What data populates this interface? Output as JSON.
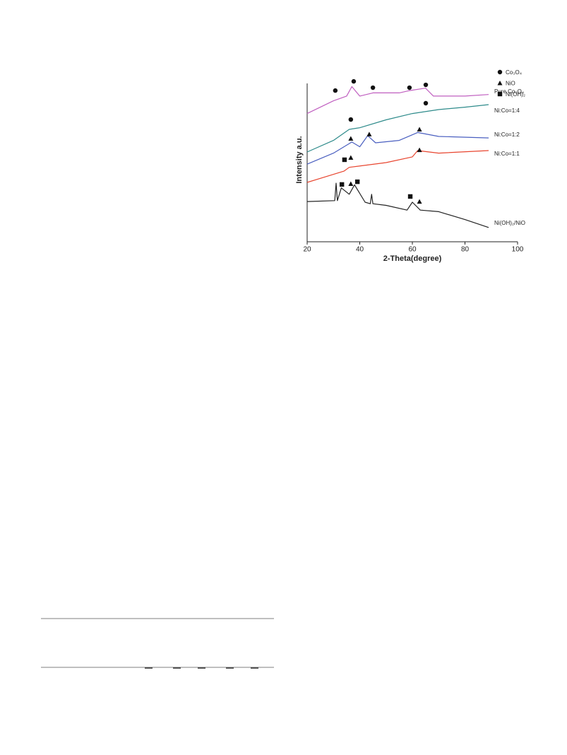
{
  "chart_data": {
    "type": "line",
    "xlabel": "2-Theta(degree)",
    "ylabel": "Intensity a.u.",
    "xlim": [
      20,
      100
    ],
    "xticks": [
      20,
      40,
      60,
      80,
      100
    ],
    "ylim": [
      0,
      100
    ],
    "series": [
      {
        "name": "Pure Co₃O₄",
        "color": "#c05fc0",
        "x": [
          20,
          30,
          35,
          37,
          40,
          45,
          55,
          59,
          65,
          68,
          80,
          89
        ],
        "values": [
          81,
          89,
          92,
          98,
          92,
          94,
          94,
          95.5,
          97,
          92,
          92,
          93
        ]
      },
      {
        "name": "Ni:Co=1:4",
        "color": "#2e8b8b",
        "x": [
          20,
          30,
          36,
          40,
          50,
          60,
          70,
          80,
          89
        ],
        "values": [
          56.7,
          64,
          71,
          72,
          77,
          81,
          83.5,
          85,
          86.6
        ]
      },
      {
        "name": "Ni:Co=1:2",
        "color": "#4a5fc0",
        "x": [
          20,
          30,
          37,
          40,
          43,
          46,
          55,
          62,
          70,
          89
        ],
        "values": [
          49,
          56,
          63,
          60,
          67,
          62.5,
          64,
          69,
          66.5,
          65.6
        ]
      },
      {
        "name": "Ni:Co=1:1",
        "color": "#e8452f",
        "x": [
          20,
          34,
          36,
          50,
          60,
          62,
          70,
          89
        ],
        "values": [
          37.5,
          44.6,
          47,
          50,
          53.6,
          57.6,
          56,
          57.6
        ]
      },
      {
        "name": "Ni(OH)₂/NiO",
        "color": "#222222",
        "x": [
          20,
          30.5,
          31,
          31.5,
          33,
          36,
          38,
          42,
          44,
          44.5,
          45,
          50,
          58,
          60,
          63,
          70,
          80,
          89
        ],
        "values": [
          25.4,
          26,
          37,
          26,
          34,
          30,
          36,
          25,
          24,
          30,
          24,
          23,
          20,
          25,
          20,
          19,
          14,
          9
        ]
      }
    ],
    "markers": [
      {
        "symbol": "circle",
        "x": 30.7,
        "y": 95.5
      },
      {
        "symbol": "circle",
        "x": 37.7,
        "y": 101.3
      },
      {
        "symbol": "circle",
        "x": 45,
        "y": 97.3
      },
      {
        "symbol": "circle",
        "x": 58.9,
        "y": 97.3
      },
      {
        "symbol": "circle",
        "x": 65.1,
        "y": 99.1
      },
      {
        "symbol": "circle",
        "x": 65.1,
        "y": 87.5
      },
      {
        "symbol": "circle",
        "x": 36.6,
        "y": 77.2
      },
      {
        "symbol": "triangle",
        "x": 36.6,
        "y": 65.2
      },
      {
        "symbol": "triangle",
        "x": 43.6,
        "y": 67.9
      },
      {
        "symbol": "triangle",
        "x": 62.7,
        "y": 71
      },
      {
        "symbol": "triangle",
        "x": 36.6,
        "y": 53.1
      },
      {
        "symbol": "triangle",
        "x": 62.7,
        "y": 58
      },
      {
        "symbol": "triangle",
        "x": 36.6,
        "y": 36.6
      },
      {
        "symbol": "triangle",
        "x": 62.7,
        "y": 25.4
      },
      {
        "symbol": "square",
        "x": 34.2,
        "y": 51.8
      },
      {
        "symbol": "square",
        "x": 33.2,
        "y": 36.2
      },
      {
        "symbol": "square",
        "x": 39.1,
        "y": 37.9
      },
      {
        "symbol": "square",
        "x": 59.2,
        "y": 28.6
      }
    ],
    "legend": [
      {
        "symbol": "circle",
        "label": "Co₃O₄"
      },
      {
        "symbol": "triangle",
        "label": "NiO"
      },
      {
        "symbol": "square",
        "label": "Ni(OH)₂"
      }
    ]
  }
}
